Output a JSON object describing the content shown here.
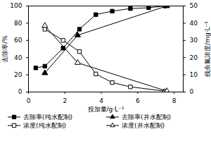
{
  "chart_data": {
    "type": "line",
    "x_label": "投加量/g·L⁻¹",
    "y_label": "去除率/%",
    "y2_label": "残余氟浓度/mg·L⁻¹",
    "xlim": [
      0,
      8.5
    ],
    "xticks": [
      0,
      2,
      4,
      6,
      8
    ],
    "ylim": [
      0,
      100
    ],
    "yticks": [
      0,
      20,
      40,
      60,
      80,
      100
    ],
    "y2lim": [
      0,
      50
    ],
    "y2ticks": [
      0,
      10,
      20,
      30,
      40,
      50
    ],
    "grid": false,
    "legend": "bottom",
    "series": [
      {
        "name": "去除率(纯水配制)",
        "color": "#000000",
        "marker": "square",
        "x": [
          0.4,
          0.9,
          1.9,
          2.8,
          3.7,
          4.6,
          5.6,
          6.6,
          7.5
        ],
        "values": [
          28,
          30,
          51,
          73,
          90,
          94,
          97,
          98,
          100
        ]
      },
      {
        "name": "去除率(井水配制)",
        "color": "#000000",
        "marker": "triangle",
        "x": [
          0.9,
          2.7,
          7.6
        ],
        "values": [
          22,
          66,
          100
        ]
      },
      {
        "name": "浓度(纯水配制)",
        "color": "#000000",
        "marker": "square-open",
        "axis": "y2",
        "x": [
          0.9,
          1.9,
          2.8,
          3.7,
          4.6,
          5.6,
          7.5
        ],
        "values": [
          36.5,
          30,
          23.5,
          10.5,
          5.5,
          3,
          0.5
        ]
      },
      {
        "name": "浓度(井水配制)",
        "color": "#000000",
        "marker": "triangle-open",
        "axis": "y2",
        "x": [
          0.9,
          2.7,
          7.6
        ],
        "values": [
          38.5,
          17,
          0.5
        ]
      }
    ]
  }
}
